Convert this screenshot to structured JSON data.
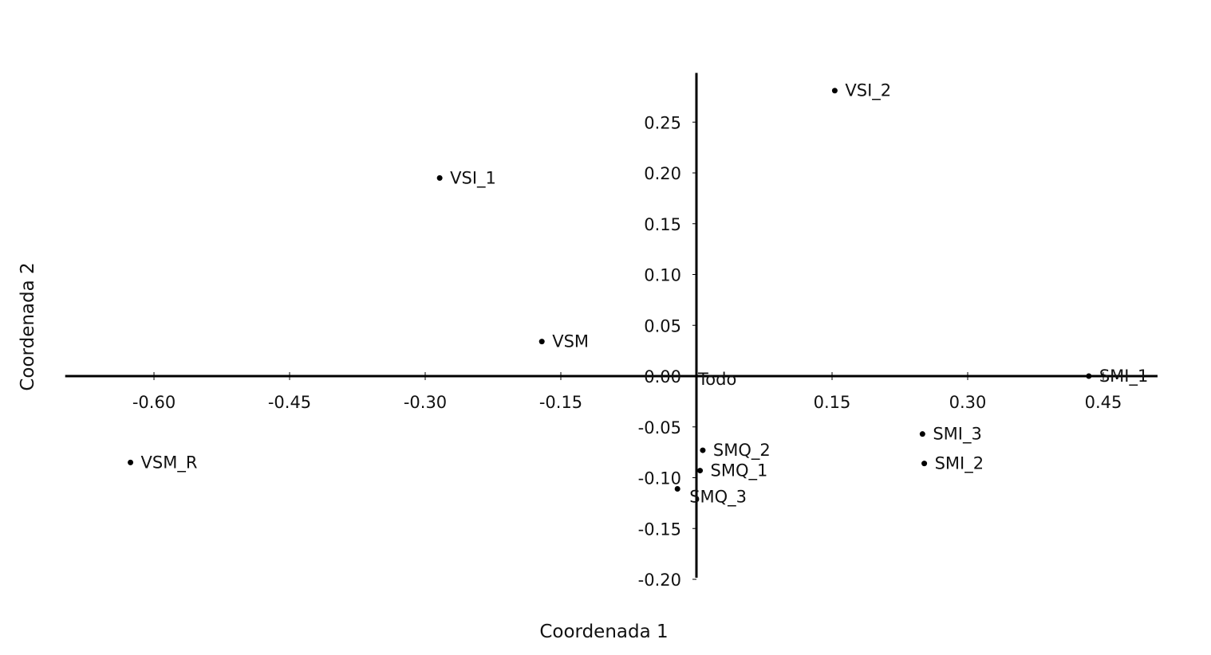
{
  "chart_data": {
    "type": "scatter",
    "title": "",
    "xlabel": "Coordenada 1",
    "ylabel": "Coordenada 2",
    "xlim": [
      -0.7,
      0.51
    ],
    "ylim": [
      -0.2,
      0.3
    ],
    "grid": false,
    "x_ticks": [
      {
        "value": -0.6,
        "label": "-0.60"
      },
      {
        "value": -0.45,
        "label": "-0.45"
      },
      {
        "value": -0.3,
        "label": "-0.30"
      },
      {
        "value": -0.15,
        "label": "-0.15"
      },
      {
        "value": 0.15,
        "label": "0.15"
      },
      {
        "value": 0.3,
        "label": "0.30"
      },
      {
        "value": 0.45,
        "label": "0.45"
      }
    ],
    "y_ticks": [
      {
        "value": 0.25,
        "label": "0.25"
      },
      {
        "value": 0.2,
        "label": "0.20"
      },
      {
        "value": 0.15,
        "label": "0.15"
      },
      {
        "value": 0.1,
        "label": "0.10"
      },
      {
        "value": 0.05,
        "label": "0.05"
      },
      {
        "value": 0.0,
        "label": "0.00"
      },
      {
        "value": -0.05,
        "label": "-0.05"
      },
      {
        "value": -0.1,
        "label": "-0.10"
      },
      {
        "value": -0.15,
        "label": "-0.15"
      },
      {
        "value": -0.2,
        "label": "-0.20"
      }
    ],
    "points": [
      {
        "label": "VSI_2",
        "x": 0.153,
        "y": 0.281
      },
      {
        "label": "VSI_1",
        "x": -0.284,
        "y": 0.195
      },
      {
        "label": "VSM",
        "x": -0.171,
        "y": 0.034
      },
      {
        "label": "Todo",
        "x": 0.0,
        "y": 0.0
      },
      {
        "label": "SMI_1",
        "x": 0.434,
        "y": 0.0
      },
      {
        "label": "SMI_3",
        "x": 0.25,
        "y": -0.057
      },
      {
        "label": "SMI_2",
        "x": 0.252,
        "y": -0.086
      },
      {
        "label": "SMQ_2",
        "x": 0.007,
        "y": -0.073
      },
      {
        "label": "SMQ_1",
        "x": 0.004,
        "y": -0.093
      },
      {
        "label": "SMQ_3",
        "x": -0.021,
        "y": -0.111
      },
      {
        "label": "VSM_R",
        "x": -0.626,
        "y": -0.085
      }
    ]
  }
}
